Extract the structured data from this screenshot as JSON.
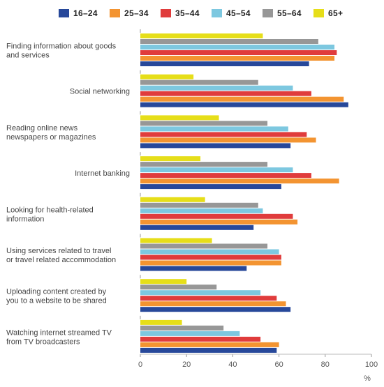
{
  "chart_data": {
    "type": "bar",
    "orientation": "horizontal",
    "categories": [
      [
        "Finding information about goods",
        "and services"
      ],
      [
        "Social networking"
      ],
      [
        "Reading online news",
        "newspapers or magazines"
      ],
      [
        "Internet banking"
      ],
      [
        "Looking for health-related",
        "information"
      ],
      [
        "Using services related to travel",
        "or travel related accommodation"
      ],
      [
        "Uploading content created by",
        "you to a website to be shared"
      ],
      [
        "Watching internet streamed TV",
        "from TV broadcasters"
      ]
    ],
    "series": [
      {
        "name": "16–24",
        "color": "#27489a",
        "values": [
          73,
          90,
          65,
          61,
          49,
          46,
          65,
          59
        ]
      },
      {
        "name": "25–34",
        "color": "#f39431",
        "values": [
          84,
          88,
          76,
          86,
          68,
          61,
          63,
          60
        ]
      },
      {
        "name": "35–44",
        "color": "#e03c3c",
        "values": [
          85,
          74,
          72,
          74,
          66,
          61,
          59,
          52
        ]
      },
      {
        "name": "45–54",
        "color": "#7dc8e0",
        "values": [
          84,
          66,
          64,
          66,
          53,
          60,
          52,
          43
        ]
      },
      {
        "name": "55–64",
        "color": "#979797",
        "values": [
          77,
          51,
          55,
          55,
          51,
          55,
          33,
          36
        ]
      },
      {
        "name": "65+",
        "color": "#e6de19",
        "values": [
          53,
          23,
          34,
          26,
          28,
          31,
          20,
          18
        ]
      }
    ],
    "xlim": [
      0,
      100
    ],
    "xticks": [
      0,
      20,
      40,
      60,
      80,
      100
    ],
    "xlabel": "%",
    "legend_position": "top",
    "grid": false
  }
}
